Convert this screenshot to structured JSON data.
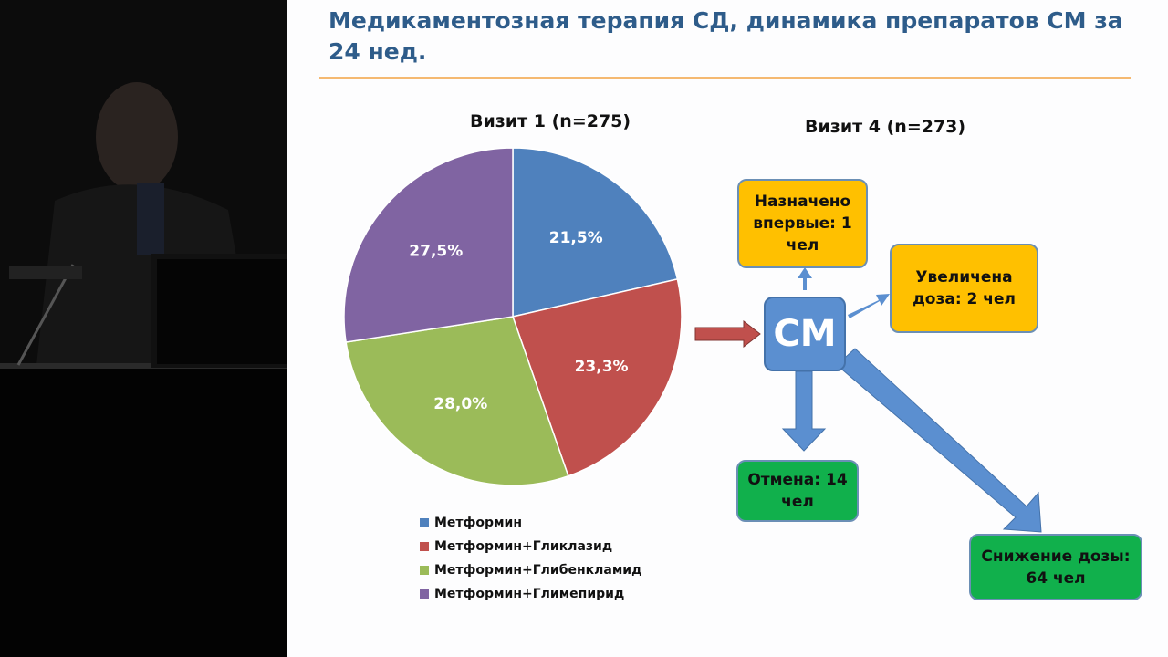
{
  "slide": {
    "title": "Медикаментозная терапия СД, динамика препаратов СМ за 24 нед.",
    "visit1_label": "Визит 1 (n=275)",
    "visit4_label": "Визит 4 (n=273)",
    "center_label": "СМ",
    "boxes": {
      "new": "Назначено впервые: 1 чел",
      "increased": "Увеличена доза: 2 чел",
      "cancel": "Отмена: 14 чел",
      "decrease": "Снижение дозы: 64 чел"
    },
    "colors": {
      "title": "#2e5c8a",
      "rule": "#f5b971",
      "yellow_box": "#ffc000",
      "green_box": "#11b04c",
      "cm_box": "#5b8fd0",
      "arrow": "#5b8fd0",
      "red_arrow": "#c0504d"
    }
  },
  "chart_data": {
    "type": "pie",
    "title": "Визит 1 (n=275)",
    "categories": [
      "Метформин",
      "Метформин+Гликлазид",
      "Метформин+Глибенкламид",
      "Метформин+Глимепирид"
    ],
    "values": [
      21.5,
      23.3,
      28.0,
      27.5
    ],
    "labels": [
      "21,5%",
      "23,3%",
      "28,0%",
      "27,5%"
    ],
    "colors": [
      "#4f81bd",
      "#c0504d",
      "#9bbb59",
      "#8064a2"
    ],
    "legend_position": "bottom"
  }
}
